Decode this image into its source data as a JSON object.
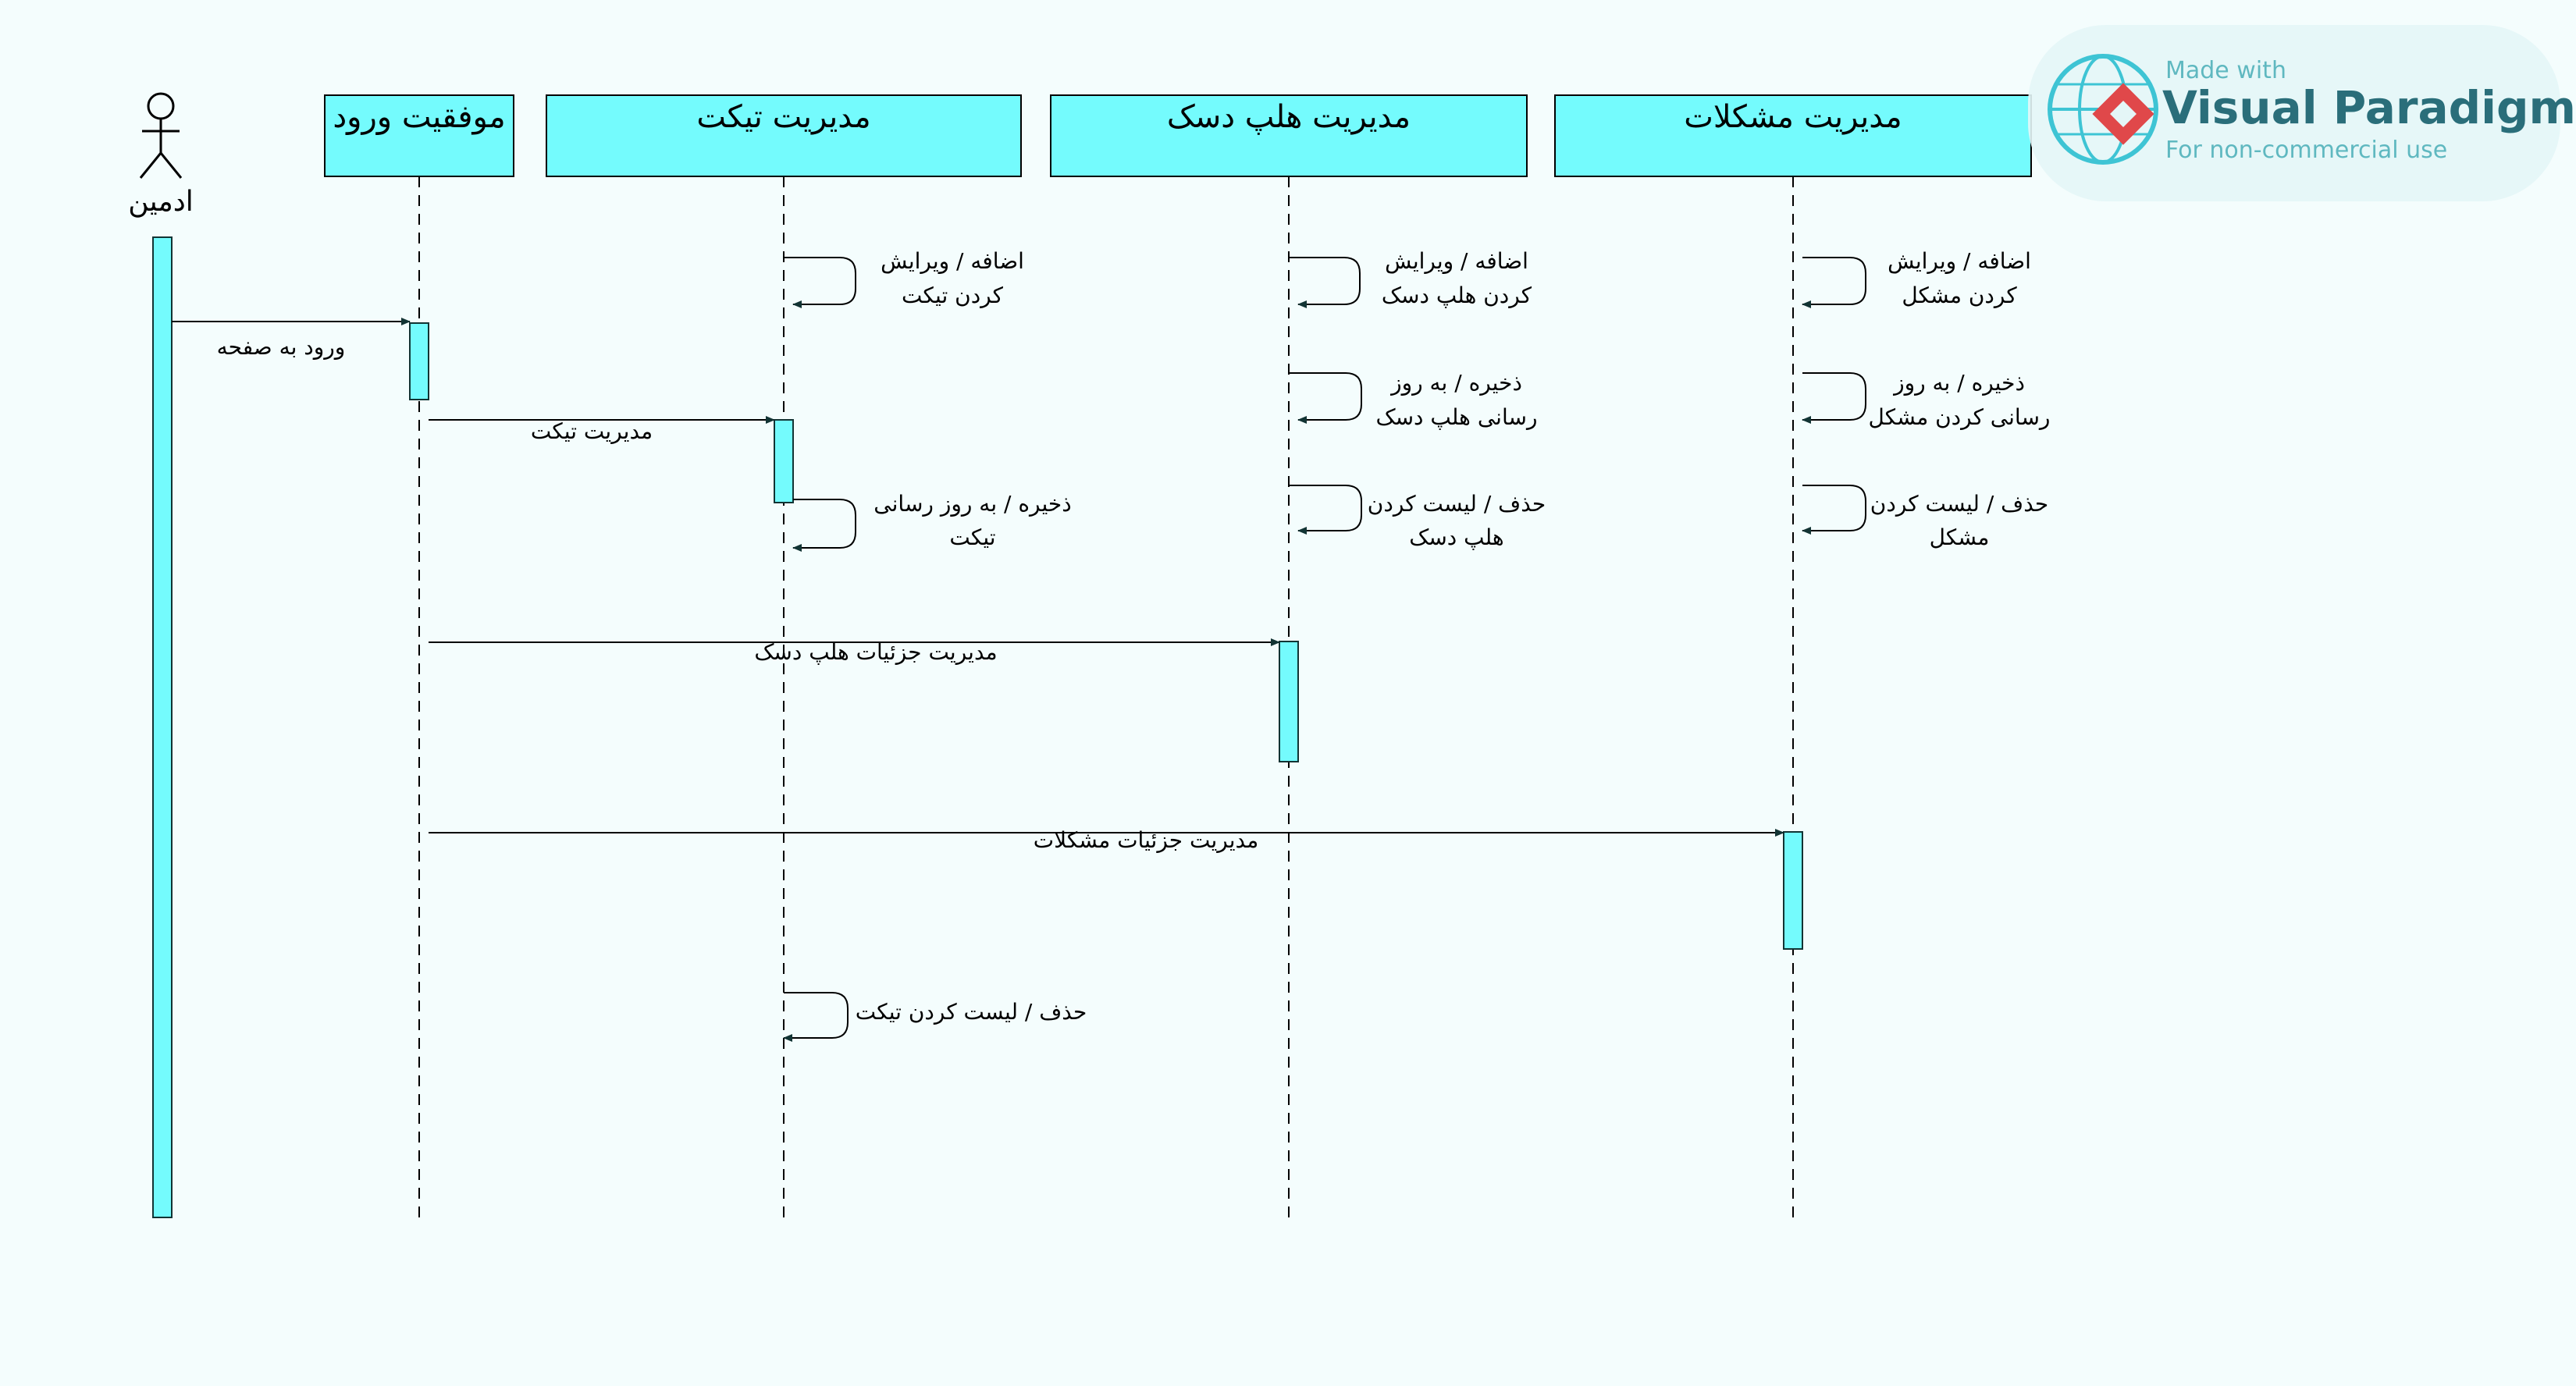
{
  "actor": {
    "label": "ادمین"
  },
  "lifelines": [
    {
      "id": "login",
      "label": "موفقیت ورود"
    },
    {
      "id": "ticket",
      "label": "مدیریت تیکت"
    },
    {
      "id": "helpdesk",
      "label": "مدیریت هلپ دسک"
    },
    {
      "id": "problems",
      "label": "مدیریت مشکلات"
    }
  ],
  "messages": [
    {
      "id": "m-login",
      "from": "actor",
      "to": "login",
      "label": "ورود به صفحه"
    },
    {
      "id": "m-ticket",
      "from": "login",
      "to": "ticket",
      "label": "مدیریت تیکت"
    },
    {
      "id": "m-helpdesk",
      "from": "login",
      "to": "helpdesk",
      "label": "مدیریت جزئیات هلپ دسک"
    },
    {
      "id": "m-problems",
      "from": "login",
      "to": "problems",
      "label": "مدیریت جزئیات مشکلات"
    }
  ],
  "self_messages": [
    {
      "id": "s-t1",
      "on": "ticket",
      "lines": [
        "اضافه / ویرایش",
        "کردن تیکت"
      ]
    },
    {
      "id": "s-t2",
      "on": "ticket",
      "lines": [
        "ذخیره / به روز رسانی",
        "تیکت"
      ]
    },
    {
      "id": "s-t3",
      "on": "ticket",
      "lines": [
        "حذف / لیست کردن تیکت"
      ]
    },
    {
      "id": "s-h1",
      "on": "helpdesk",
      "lines": [
        "اضافه / ویرایش",
        "کردن هلپ دسک"
      ]
    },
    {
      "id": "s-h2",
      "on": "helpdesk",
      "lines": [
        "ذخیره / به روز",
        "رسانی هلپ دسک"
      ]
    },
    {
      "id": "s-h3",
      "on": "helpdesk",
      "lines": [
        "حذف / لیست کردن",
        "هلپ دسک"
      ]
    },
    {
      "id": "s-p1",
      "on": "problems",
      "lines": [
        "اضافه / ویرایش",
        "کردن مشکل"
      ]
    },
    {
      "id": "s-p2",
      "on": "problems",
      "lines": [
        "ذخیره / به روز",
        "رسانی کردن مشکل"
      ]
    },
    {
      "id": "s-p3",
      "on": "problems",
      "lines": [
        "حذف / لیست کردن",
        "مشکل"
      ]
    }
  ],
  "watermark": {
    "made_with": "Made with",
    "brand": "Visual Paradigm",
    "note": "For non-commercial use"
  },
  "colors": {
    "background": "#f4fdfd",
    "box_fill": "#74fbfd",
    "line": "#000000",
    "arrow": "#123434",
    "brand_accent": "#e0484a"
  }
}
